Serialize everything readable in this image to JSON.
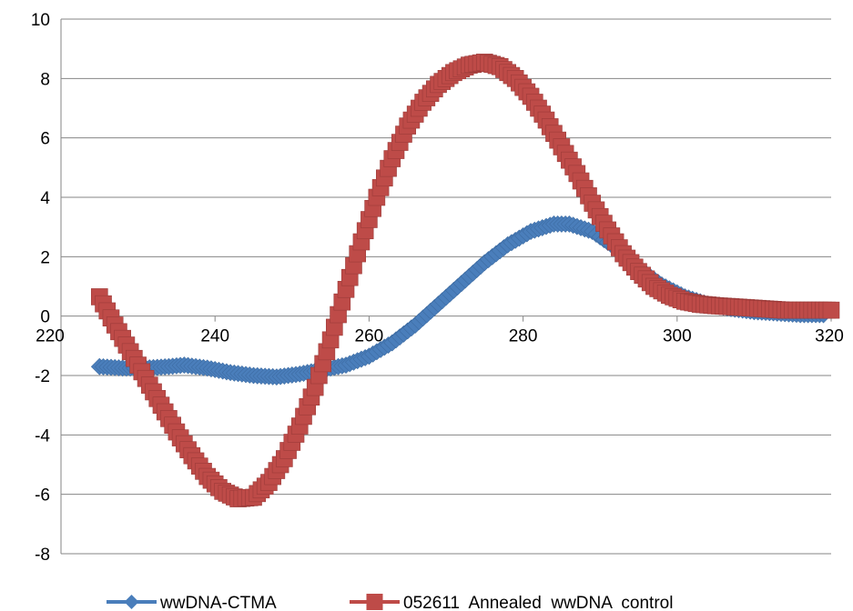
{
  "chart_data": {
    "type": "line",
    "title": "",
    "xlabel": "",
    "ylabel": "",
    "xlim": [
      220,
      320
    ],
    "ylim": [
      -8,
      10
    ],
    "x_ticks": [
      "220",
      "240",
      "260",
      "280",
      "300",
      "320"
    ],
    "y_ticks": [
      "-8",
      "-6",
      "-4",
      "-2",
      "0",
      "2",
      "4",
      "6",
      "8",
      "10"
    ],
    "grid": "horizontal",
    "legend_position": "bottom",
    "series": [
      {
        "name": "wwDNA-CTMA",
        "color": "#4a7ebb",
        "marker": "diamond",
        "points": [
          [
            225,
            -1.7
          ],
          [
            228,
            -1.75
          ],
          [
            231,
            -1.75
          ],
          [
            234,
            -1.7
          ],
          [
            236,
            -1.65
          ],
          [
            239,
            -1.75
          ],
          [
            242,
            -1.9
          ],
          [
            245,
            -2.0
          ],
          [
            248,
            -2.05
          ],
          [
            251,
            -1.95
          ],
          [
            254,
            -1.8
          ],
          [
            257,
            -1.65
          ],
          [
            260,
            -1.35
          ],
          [
            263,
            -0.9
          ],
          [
            266,
            -0.3
          ],
          [
            269,
            0.4
          ],
          [
            272,
            1.1
          ],
          [
            275,
            1.8
          ],
          [
            278,
            2.4
          ],
          [
            281,
            2.85
          ],
          [
            284,
            3.1
          ],
          [
            286,
            3.1
          ],
          [
            289,
            2.85
          ],
          [
            292,
            2.3
          ],
          [
            295,
            1.6
          ],
          [
            298,
            1.05
          ],
          [
            301,
            0.65
          ],
          [
            304,
            0.4
          ],
          [
            307,
            0.25
          ],
          [
            310,
            0.15
          ],
          [
            313,
            0.1
          ],
          [
            316,
            0.05
          ],
          [
            319,
            0.05
          ]
        ]
      },
      {
        "name": "052611  Annealed  wwDNA  control",
        "color": "#be4b48",
        "marker": "square",
        "points": [
          [
            225,
            0.65
          ],
          [
            227,
            -0.3
          ],
          [
            229,
            -1.2
          ],
          [
            231,
            -2.1
          ],
          [
            233,
            -3.0
          ],
          [
            235,
            -3.9
          ],
          [
            237,
            -4.7
          ],
          [
            239,
            -5.4
          ],
          [
            241,
            -5.9
          ],
          [
            243,
            -6.15
          ],
          [
            245,
            -6.1
          ],
          [
            247,
            -5.6
          ],
          [
            249,
            -4.8
          ],
          [
            251,
            -3.7
          ],
          [
            253,
            -2.4
          ],
          [
            255,
            -0.8
          ],
          [
            257,
            0.9
          ],
          [
            259,
            2.5
          ],
          [
            261,
            4.0
          ],
          [
            263,
            5.3
          ],
          [
            265,
            6.4
          ],
          [
            267,
            7.2
          ],
          [
            269,
            7.8
          ],
          [
            271,
            8.2
          ],
          [
            273,
            8.45
          ],
          [
            275,
            8.55
          ],
          [
            277,
            8.4
          ],
          [
            279,
            8.0
          ],
          [
            281,
            7.4
          ],
          [
            283,
            6.6
          ],
          [
            285,
            5.7
          ],
          [
            287,
            4.8
          ],
          [
            289,
            3.8
          ],
          [
            291,
            2.9
          ],
          [
            293,
            2.1
          ],
          [
            295,
            1.5
          ],
          [
            297,
            1.0
          ],
          [
            299,
            0.7
          ],
          [
            301,
            0.5
          ],
          [
            303,
            0.4
          ],
          [
            305,
            0.35
          ],
          [
            308,
            0.3
          ],
          [
            311,
            0.25
          ],
          [
            314,
            0.2
          ],
          [
            317,
            0.2
          ],
          [
            320,
            0.2
          ]
        ]
      }
    ]
  }
}
